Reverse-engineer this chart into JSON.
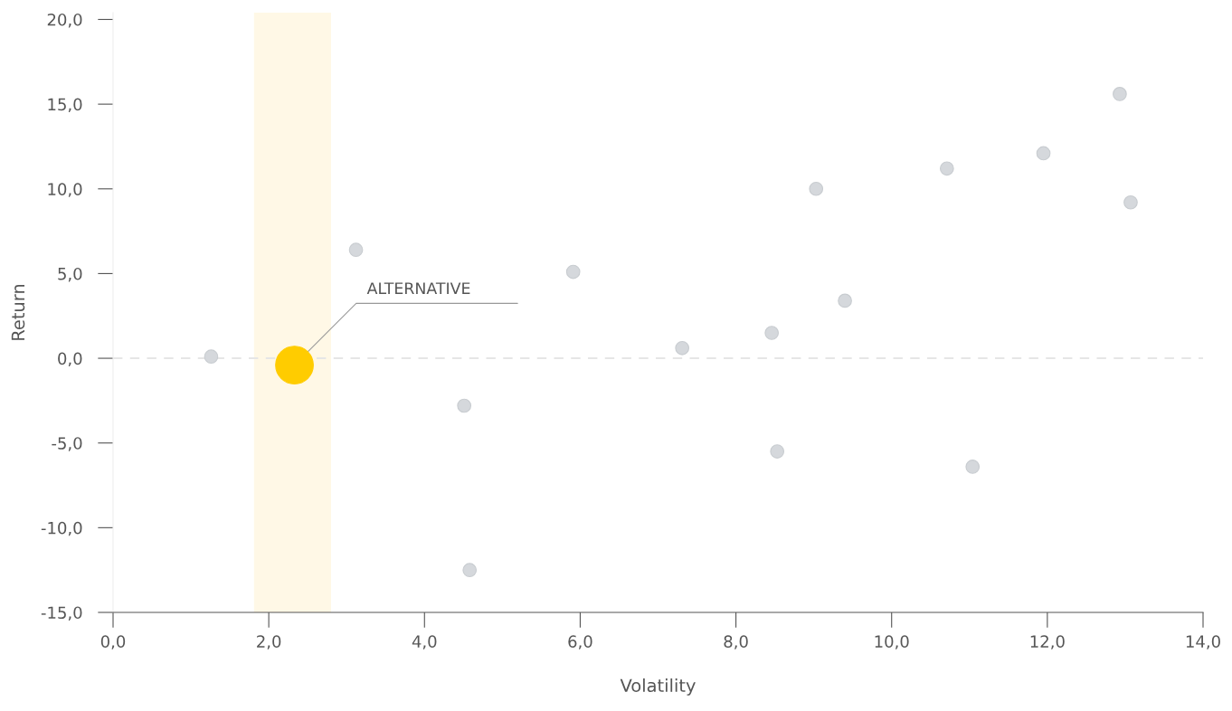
{
  "chart_data": {
    "type": "scatter",
    "xlabel": "Volatility",
    "ylabel": "Return",
    "series": [
      {
        "color": "#d5d8dc",
        "x": [
          1.26,
          3.12,
          4.51,
          4.58,
          5.91,
          7.31,
          8.46,
          8.53,
          9.03,
          9.4,
          10.71,
          11.04,
          11.95,
          12.93,
          13.07
        ],
        "values": [
          0.1,
          6.4,
          -2.8,
          -12.5,
          5.1,
          0.6,
          1.5,
          -5.5,
          10.0,
          3.4,
          11.2,
          -6.4,
          12.1,
          15.6,
          9.2
        ]
      },
      {
        "color": "#ffcc00",
        "x": [
          2.33
        ],
        "values": [
          -0.4
        ]
      }
    ],
    "xlim": [
      0,
      14
    ],
    "ylim": [
      -15,
      20.4
    ],
    "xticks": [
      {
        "value": 0,
        "label": "0,0"
      },
      {
        "value": 2,
        "label": "2,0"
      },
      {
        "value": 4,
        "label": "4,0"
      },
      {
        "value": 6,
        "label": "6,0"
      },
      {
        "value": 8,
        "label": "8,0"
      },
      {
        "value": 10,
        "label": "10,0"
      },
      {
        "value": 12,
        "label": "12,0"
      },
      {
        "value": 14,
        "label": "14,0"
      }
    ],
    "yticks": [
      {
        "value": -15,
        "label": "-15,0"
      },
      {
        "value": -10,
        "label": "-10,0"
      },
      {
        "value": -5,
        "label": "-5,0"
      },
      {
        "value": 0,
        "label": "0,0"
      },
      {
        "value": 5,
        "label": "5,0"
      },
      {
        "value": 10,
        "label": "10,0"
      },
      {
        "value": 15,
        "label": "15,0"
      },
      {
        "value": 20,
        "label": "20,0"
      }
    ],
    "ref_lines": [
      {
        "axis": "y",
        "value": 0,
        "color": "#e6e6e6",
        "line_style": "dashed"
      }
    ],
    "bands": [
      {
        "axis": "x",
        "from": 1.81,
        "to": 2.8,
        "color": "#fff8e6"
      }
    ],
    "annotations": [
      {
        "text": "ALTERNATIVE",
        "x": 2.33,
        "y": -0.4
      }
    ],
    "grid": false,
    "legend": false,
    "marker": "circle"
  }
}
